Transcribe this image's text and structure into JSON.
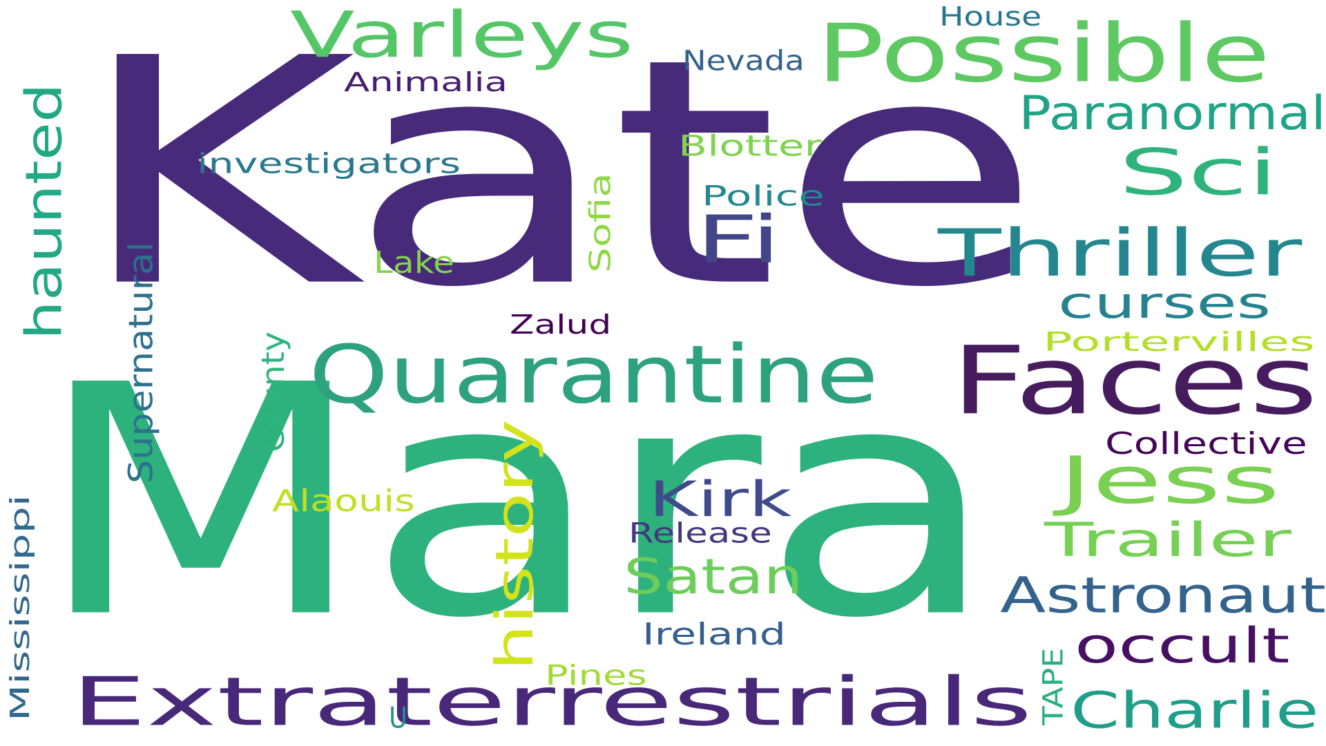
{
  "colors": {
    "background": "#ffffff"
  },
  "words": [
    {
      "id": "kate",
      "text": "Kate",
      "color": "#472a7a",
      "orientation": "horizontal"
    },
    {
      "id": "mara",
      "text": "Mara",
      "color": "#2db27d",
      "orientation": "horizontal"
    },
    {
      "id": "extraterrestrials",
      "text": "Extraterrestrials",
      "color": "#482878",
      "orientation": "horizontal"
    },
    {
      "id": "quarantine",
      "text": "Quarantine",
      "color": "#2ea17f",
      "orientation": "horizontal"
    },
    {
      "id": "faces",
      "text": "Faces",
      "color": "#461c5f",
      "orientation": "horizontal"
    },
    {
      "id": "possible",
      "text": "Possible",
      "color": "#5ec962",
      "orientation": "horizontal"
    },
    {
      "id": "varleys",
      "text": "Varleys",
      "color": "#55c667",
      "orientation": "horizontal"
    },
    {
      "id": "jess",
      "text": "Jess",
      "color": "#7ad151",
      "orientation": "horizontal"
    },
    {
      "id": "sci",
      "text": "Sci",
      "color": "#2eb37c",
      "orientation": "horizontal"
    },
    {
      "id": "thriller",
      "text": "Thriller",
      "color": "#24868e",
      "orientation": "horizontal"
    },
    {
      "id": "fi",
      "text": "Fi",
      "color": "#404688",
      "orientation": "horizontal"
    },
    {
      "id": "paranormal",
      "text": "Paranormal",
      "color": "#20a386",
      "orientation": "horizontal"
    },
    {
      "id": "curses",
      "text": "curses",
      "color": "#26828e",
      "orientation": "horizontal"
    },
    {
      "id": "astronaut",
      "text": "Astronaut",
      "color": "#33638d",
      "orientation": "horizontal"
    },
    {
      "id": "trailer",
      "text": "Trailer",
      "color": "#75d054",
      "orientation": "horizontal"
    },
    {
      "id": "charlie",
      "text": "Charlie",
      "color": "#1f9e89",
      "orientation": "horizontal"
    },
    {
      "id": "occult",
      "text": "occult",
      "color": "#471063",
      "orientation": "horizontal"
    },
    {
      "id": "satan",
      "text": "Satan",
      "color": "#6ccd5a",
      "orientation": "horizontal"
    },
    {
      "id": "kirk",
      "text": "Kirk",
      "color": "#3e4a89",
      "orientation": "horizontal"
    },
    {
      "id": "history",
      "text": "history",
      "color": "#d2e21b",
      "orientation": "vertical"
    },
    {
      "id": "haunted",
      "text": "haunted",
      "color": "#22a884",
      "orientation": "vertical"
    },
    {
      "id": "supernatural",
      "text": "Supernatural",
      "color": "#2c728e",
      "orientation": "vertical"
    },
    {
      "id": "county",
      "text": "County",
      "color": "#2fb47c",
      "orientation": "vertical"
    },
    {
      "id": "mississippi",
      "text": "Mississippi",
      "color": "#31688e",
      "orientation": "vertical"
    },
    {
      "id": "sofia",
      "text": "Sofia",
      "color": "#8fd744",
      "orientation": "vertical"
    },
    {
      "id": "tape",
      "text": "TAPE",
      "color": "#29af7f",
      "orientation": "vertical"
    },
    {
      "id": "investigators",
      "text": "investigators",
      "color": "#2a788e",
      "orientation": "horizontal"
    },
    {
      "id": "animalia",
      "text": "Animalia",
      "color": "#481f70",
      "orientation": "horizontal"
    },
    {
      "id": "nevada",
      "text": "Nevada",
      "color": "#34618d",
      "orientation": "horizontal"
    },
    {
      "id": "house",
      "text": "House",
      "color": "#2a768e",
      "orientation": "horizontal"
    },
    {
      "id": "blotter",
      "text": "Blotter",
      "color": "#7fd34e",
      "orientation": "horizontal"
    },
    {
      "id": "police",
      "text": "Police",
      "color": "#23898e",
      "orientation": "horizontal"
    },
    {
      "id": "lake",
      "text": "Lake",
      "color": "#84d44b",
      "orientation": "horizontal"
    },
    {
      "id": "zalud",
      "text": "Zalud",
      "color": "#440154",
      "orientation": "horizontal"
    },
    {
      "id": "portervilles",
      "text": "Portervilles",
      "color": "#b5de2b",
      "orientation": "horizontal"
    },
    {
      "id": "collective",
      "text": "Collective",
      "color": "#450559",
      "orientation": "horizontal"
    },
    {
      "id": "alaouis",
      "text": "Alaouis",
      "color": "#c0df25",
      "orientation": "horizontal"
    },
    {
      "id": "release",
      "text": "Release",
      "color": "#453781",
      "orientation": "horizontal"
    },
    {
      "id": "ireland",
      "text": "Ireland",
      "color": "#355f8d",
      "orientation": "horizontal"
    },
    {
      "id": "pines",
      "text": "Pines",
      "color": "#a2da37",
      "orientation": "horizontal"
    },
    {
      "id": "u",
      "text": "U",
      "color": "#20928c",
      "orientation": "horizontal"
    }
  ]
}
